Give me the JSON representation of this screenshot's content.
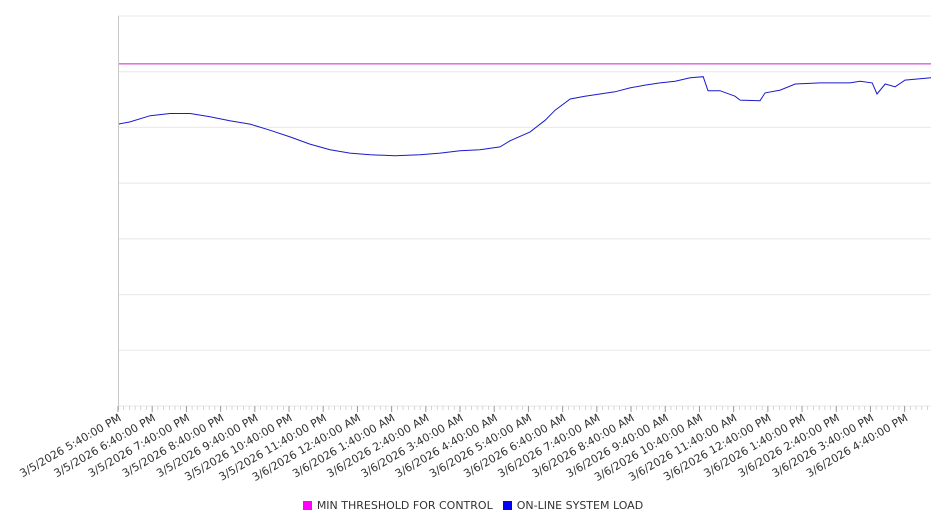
{
  "chart_data": {
    "type": "line",
    "title": "",
    "xlabel": "",
    "ylabel": "",
    "x_unit": "hours since 3/5/2026 5:40:00 PM",
    "xlim": [
      0,
      23.77
    ],
    "ylim": [
      0,
      7
    ],
    "grid": true,
    "legend_placement": "bottom",
    "x_tick_labels": [
      "3/5/2026 5:40:00 PM",
      "3/5/2026 6:40:00 PM",
      "3/5/2026 7:40:00 PM",
      "3/5/2026 8:40:00 PM",
      "3/5/2026 9:40:00 PM",
      "3/5/2026 10:40:00 PM",
      "3/5/2026 11:40:00 PM",
      "3/6/2026 12:40:00 AM",
      "3/6/2026 1:40:00 AM",
      "3/6/2026 2:40:00 AM",
      "3/6/2026 3:40:00 AM",
      "3/6/2026 4:40:00 AM",
      "3/6/2026 5:40:00 AM",
      "3/6/2026 6:40:00 AM",
      "3/6/2026 7:40:00 AM",
      "3/6/2026 8:40:00 AM",
      "3/6/2026 9:40:00 AM",
      "3/6/2026 10:40:00 AM",
      "3/6/2026 11:40:00 AM",
      "3/6/2026 12:40:00 PM",
      "3/6/2026 1:40:00 PM",
      "3/6/2026 2:40:00 PM",
      "3/6/2026 3:40:00 PM",
      "3/6/2026 4:40:00 PM"
    ],
    "series": [
      {
        "name": "MIN THRESHOLD FOR CONTROL",
        "color": "#ff00ff",
        "line_color": "#cc22cc",
        "x": [
          0,
          23.77
        ],
        "values": [
          6.14,
          6.14
        ]
      },
      {
        "name": "ON-LINE SYSTEM LOAD",
        "color": "#0000ff",
        "line_color": "#1a1acc",
        "x": [
          0,
          0.35,
          0.94,
          1.52,
          2.11,
          2.69,
          3.27,
          3.86,
          4.44,
          5.03,
          5.61,
          6.2,
          6.78,
          7.37,
          8.1,
          8.83,
          9.42,
          10.0,
          10.58,
          11.17,
          11.46,
          12.05,
          12.49,
          12.78,
          13.22,
          13.65,
          14.09,
          14.53,
          14.97,
          15.41,
          15.85,
          16.29,
          16.73,
          17.11,
          17.25,
          17.6,
          18.04,
          18.19,
          18.77,
          18.92,
          19.36,
          19.8,
          20.53,
          21.4,
          21.7,
          22.05,
          22.19,
          22.43,
          22.72,
          23.01,
          23.77
        ],
        "values": [
          5.06,
          5.1,
          5.21,
          5.25,
          5.25,
          5.19,
          5.12,
          5.06,
          4.95,
          4.83,
          4.7,
          4.6,
          4.54,
          4.51,
          4.49,
          4.51,
          4.54,
          4.58,
          4.6,
          4.65,
          4.76,
          4.92,
          5.13,
          5.31,
          5.51,
          5.56,
          5.6,
          5.64,
          5.71,
          5.76,
          5.8,
          5.83,
          5.89,
          5.91,
          5.66,
          5.66,
          5.56,
          5.49,
          5.48,
          5.62,
          5.67,
          5.78,
          5.8,
          5.8,
          5.83,
          5.8,
          5.6,
          5.78,
          5.73,
          5.85,
          5.89
        ]
      }
    ]
  }
}
